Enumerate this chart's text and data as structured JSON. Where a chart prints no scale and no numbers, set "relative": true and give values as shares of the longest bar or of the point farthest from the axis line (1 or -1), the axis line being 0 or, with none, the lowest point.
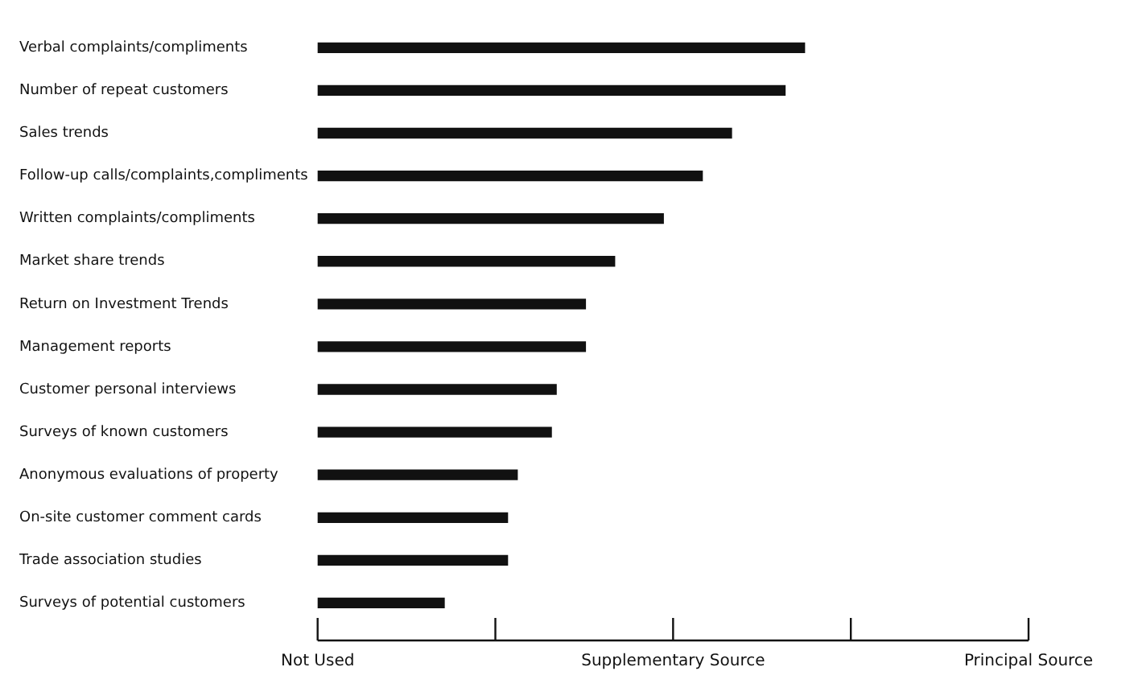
{
  "chart_data": {
    "type": "bar",
    "orientation": "horizontal",
    "relative": true,
    "categories": [
      "Verbal complaints/compliments",
      "Number of repeat customers",
      "Sales trends",
      "Follow-up calls/complaints,compliments",
      "Written complaints/compliments",
      "Market share trends",
      "Return on Investment Trends",
      "Management reports",
      "Customer personal interviews",
      "Surveys of known customers",
      "Anonymous evaluations of property",
      "On-site customer comment cards",
      "Trade association studies",
      "Surveys of potential customers"
    ],
    "values": [
      1,
      0.96,
      0.85,
      0.79,
      0.71,
      0.61,
      0.55,
      0.55,
      0.49,
      0.48,
      0.41,
      0.39,
      0.39,
      0.26
    ],
    "color": "#111111",
    "annotations": [
      "Not Used",
      "Supplementary Source",
      "Principal Source"
    ],
    "legend": false
  }
}
